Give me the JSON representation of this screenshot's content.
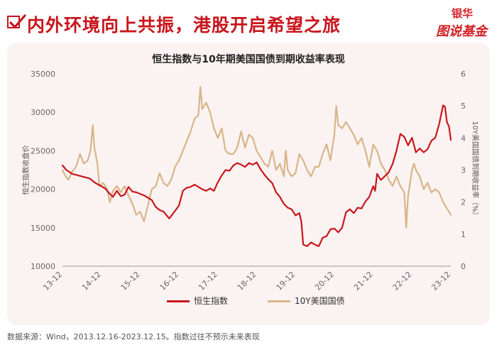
{
  "header": {
    "headline": "内外环境向上共振，港股开启希望之旅",
    "logo_top": "银华",
    "logo_bottom": "图说基金",
    "accent_color": "#c8161d"
  },
  "footnote": "数据来源：Wind，2013.12.16-2023.12.15。指数过往不预示未来表现",
  "chart_data": {
    "type": "line",
    "title": "恒生指数与10年期美国国债到期收益率表现",
    "ylabel_left": "恒生指数收盘价",
    "ylabel_right": "10Y美国国债到期收益率（%）",
    "x_ticks": [
      "13-12",
      "14-12",
      "15-12",
      "16-12",
      "17-12",
      "18-12",
      "19-12",
      "20-12",
      "21-12",
      "22-12",
      "23-12"
    ],
    "ylim_left": [
      10000,
      35000
    ],
    "yticks_left": [
      "10000",
      "15000",
      "20000",
      "25000",
      "30000",
      "35000"
    ],
    "ylim_right": [
      0,
      6
    ],
    "yticks_right": [
      "0",
      "1",
      "2",
      "3",
      "4",
      "5",
      "6"
    ],
    "grid": false,
    "legend_position": "bottom",
    "series": [
      {
        "name": "恒生指数",
        "axis": "left",
        "color": "#c8161d",
        "points": [
          [
            0.0,
            23100
          ],
          [
            0.1,
            22500
          ],
          [
            0.25,
            22000
          ],
          [
            0.4,
            21800
          ],
          [
            0.55,
            21600
          ],
          [
            0.7,
            21400
          ],
          [
            0.85,
            20800
          ],
          [
            1.0,
            20400
          ],
          [
            1.1,
            20100
          ],
          [
            1.2,
            19500
          ],
          [
            1.3,
            19000
          ],
          [
            1.4,
            19800
          ],
          [
            1.5,
            19100
          ],
          [
            1.6,
            19300
          ],
          [
            1.7,
            20300
          ],
          [
            1.8,
            19700
          ],
          [
            1.9,
            19600
          ],
          [
            2.0,
            19400
          ],
          [
            2.1,
            19200
          ],
          [
            2.2,
            18900
          ],
          [
            2.3,
            18600
          ],
          [
            2.4,
            17700
          ],
          [
            2.5,
            17300
          ],
          [
            2.6,
            17100
          ],
          [
            2.75,
            16200
          ],
          [
            2.9,
            17200
          ],
          [
            3.0,
            17900
          ],
          [
            3.1,
            19800
          ],
          [
            3.2,
            20200
          ],
          [
            3.3,
            20300
          ],
          [
            3.4,
            20600
          ],
          [
            3.5,
            20300
          ],
          [
            3.6,
            20000
          ],
          [
            3.7,
            19800
          ],
          [
            3.8,
            20100
          ],
          [
            3.9,
            19800
          ],
          [
            4.0,
            20900
          ],
          [
            4.1,
            21800
          ],
          [
            4.2,
            22500
          ],
          [
            4.3,
            22400
          ],
          [
            4.4,
            23100
          ],
          [
            4.5,
            23400
          ],
          [
            4.6,
            23200
          ],
          [
            4.7,
            22900
          ],
          [
            4.8,
            23400
          ],
          [
            4.9,
            23200
          ],
          [
            5.0,
            23500
          ],
          [
            5.1,
            22600
          ],
          [
            5.2,
            21900
          ],
          [
            5.3,
            21300
          ],
          [
            5.4,
            20800
          ],
          [
            5.5,
            19600
          ],
          [
            5.6,
            19000
          ],
          [
            5.7,
            18100
          ],
          [
            5.8,
            17600
          ],
          [
            5.9,
            17400
          ],
          [
            6.0,
            16600
          ],
          [
            6.1,
            16900
          ],
          [
            6.15,
            15800
          ],
          [
            6.2,
            12800
          ],
          [
            6.3,
            12600
          ],
          [
            6.4,
            13100
          ],
          [
            6.5,
            12800
          ],
          [
            6.6,
            12600
          ],
          [
            6.7,
            13700
          ],
          [
            6.8,
            13900
          ],
          [
            6.9,
            14800
          ],
          [
            7.0,
            14900
          ],
          [
            7.1,
            14400
          ],
          [
            7.2,
            15000
          ],
          [
            7.3,
            17000
          ],
          [
            7.4,
            17400
          ],
          [
            7.5,
            16900
          ],
          [
            7.6,
            17600
          ],
          [
            7.7,
            17500
          ],
          [
            7.8,
            18400
          ],
          [
            7.9,
            19000
          ],
          [
            8.0,
            20400
          ],
          [
            8.05,
            19800
          ],
          [
            8.1,
            22000
          ],
          [
            8.2,
            21200
          ],
          [
            8.3,
            21700
          ],
          [
            8.4,
            22200
          ],
          [
            8.5,
            23300
          ],
          [
            8.6,
            25000
          ],
          [
            8.7,
            27200
          ],
          [
            8.8,
            26800
          ],
          [
            8.9,
            25700
          ],
          [
            9.0,
            26700
          ],
          [
            9.1,
            24800
          ],
          [
            9.2,
            25300
          ],
          [
            9.3,
            24800
          ],
          [
            9.4,
            25200
          ],
          [
            9.5,
            26300
          ],
          [
            9.6,
            26700
          ],
          [
            9.7,
            28500
          ],
          [
            9.8,
            30900
          ],
          [
            9.85,
            30700
          ],
          [
            9.9,
            28700
          ],
          [
            9.95,
            28200
          ],
          [
            10.0,
            26400
          ]
        ]
      },
      {
        "name": "10Y美国国债",
        "axis": "right",
        "color": "#d8b588",
        "points": [
          [
            0.0,
            3.0
          ],
          [
            0.08,
            2.8
          ],
          [
            0.15,
            2.7
          ],
          [
            0.25,
            2.95
          ],
          [
            0.35,
            3.1
          ],
          [
            0.45,
            3.5
          ],
          [
            0.55,
            3.2
          ],
          [
            0.65,
            3.3
          ],
          [
            0.72,
            3.6
          ],
          [
            0.78,
            4.4
          ],
          [
            0.82,
            3.7
          ],
          [
            0.9,
            3.2
          ],
          [
            0.95,
            2.5
          ],
          [
            1.05,
            2.6
          ],
          [
            1.15,
            2.4
          ],
          [
            1.22,
            2.0
          ],
          [
            1.3,
            2.35
          ],
          [
            1.4,
            2.5
          ],
          [
            1.5,
            2.3
          ],
          [
            1.6,
            2.5
          ],
          [
            1.7,
            2.2
          ],
          [
            1.8,
            1.95
          ],
          [
            1.9,
            1.6
          ],
          [
            2.0,
            1.7
          ],
          [
            2.1,
            1.4
          ],
          [
            2.2,
            1.9
          ],
          [
            2.3,
            2.4
          ],
          [
            2.4,
            2.5
          ],
          [
            2.5,
            2.9
          ],
          [
            2.6,
            2.6
          ],
          [
            2.7,
            2.5
          ],
          [
            2.8,
            2.7
          ],
          [
            2.9,
            3.1
          ],
          [
            3.0,
            3.3
          ],
          [
            3.1,
            3.6
          ],
          [
            3.2,
            3.9
          ],
          [
            3.3,
            4.2
          ],
          [
            3.4,
            4.6
          ],
          [
            3.5,
            4.7
          ],
          [
            3.55,
            5.6
          ],
          [
            3.6,
            4.9
          ],
          [
            3.7,
            5.1
          ],
          [
            3.8,
            4.8
          ],
          [
            3.9,
            4.3
          ],
          [
            4.0,
            4.0
          ],
          [
            4.1,
            4.3
          ],
          [
            4.2,
            3.6
          ],
          [
            4.3,
            3.5
          ],
          [
            4.4,
            3.5
          ],
          [
            4.5,
            3.7
          ],
          [
            4.6,
            4.2
          ],
          [
            4.7,
            3.7
          ],
          [
            4.8,
            4.1
          ],
          [
            4.9,
            4.0
          ],
          [
            5.0,
            3.6
          ],
          [
            5.1,
            3.4
          ],
          [
            5.2,
            3.2
          ],
          [
            5.3,
            3.1
          ],
          [
            5.4,
            3.6
          ],
          [
            5.5,
            3.0
          ],
          [
            5.6,
            3.2
          ],
          [
            5.7,
            2.8
          ],
          [
            5.75,
            3.6
          ],
          [
            5.8,
            3.0
          ],
          [
            5.9,
            2.8
          ],
          [
            6.0,
            2.9
          ],
          [
            6.1,
            3.5
          ],
          [
            6.2,
            3.3
          ],
          [
            6.3,
            3.0
          ],
          [
            6.4,
            2.8
          ],
          [
            6.5,
            3.1
          ],
          [
            6.6,
            3.1
          ],
          [
            6.7,
            3.5
          ],
          [
            6.8,
            3.8
          ],
          [
            6.9,
            3.3
          ],
          [
            7.0,
            4.1
          ],
          [
            7.05,
            5.0
          ],
          [
            7.1,
            4.4
          ],
          [
            7.2,
            4.3
          ],
          [
            7.3,
            4.5
          ],
          [
            7.4,
            4.3
          ],
          [
            7.5,
            4.1
          ],
          [
            7.6,
            3.8
          ],
          [
            7.7,
            4.0
          ],
          [
            7.8,
            3.6
          ],
          [
            7.9,
            3.1
          ],
          [
            8.0,
            3.8
          ],
          [
            8.1,
            3.6
          ],
          [
            8.2,
            3.2
          ],
          [
            8.3,
            3.0
          ],
          [
            8.4,
            2.7
          ],
          [
            8.5,
            2.5
          ],
          [
            8.6,
            2.8
          ],
          [
            8.7,
            2.5
          ],
          [
            8.8,
            2.3
          ],
          [
            8.85,
            1.2
          ],
          [
            8.9,
            2.2
          ],
          [
            9.0,
            3.0
          ],
          [
            9.05,
            3.2
          ],
          [
            9.1,
            3.0
          ],
          [
            9.2,
            2.8
          ],
          [
            9.3,
            2.4
          ],
          [
            9.4,
            2.6
          ],
          [
            9.5,
            2.3
          ],
          [
            9.6,
            2.4
          ],
          [
            9.7,
            2.3
          ],
          [
            9.8,
            2.0
          ],
          [
            9.9,
            1.8
          ],
          [
            10.0,
            1.6
          ]
        ]
      }
    ]
  }
}
